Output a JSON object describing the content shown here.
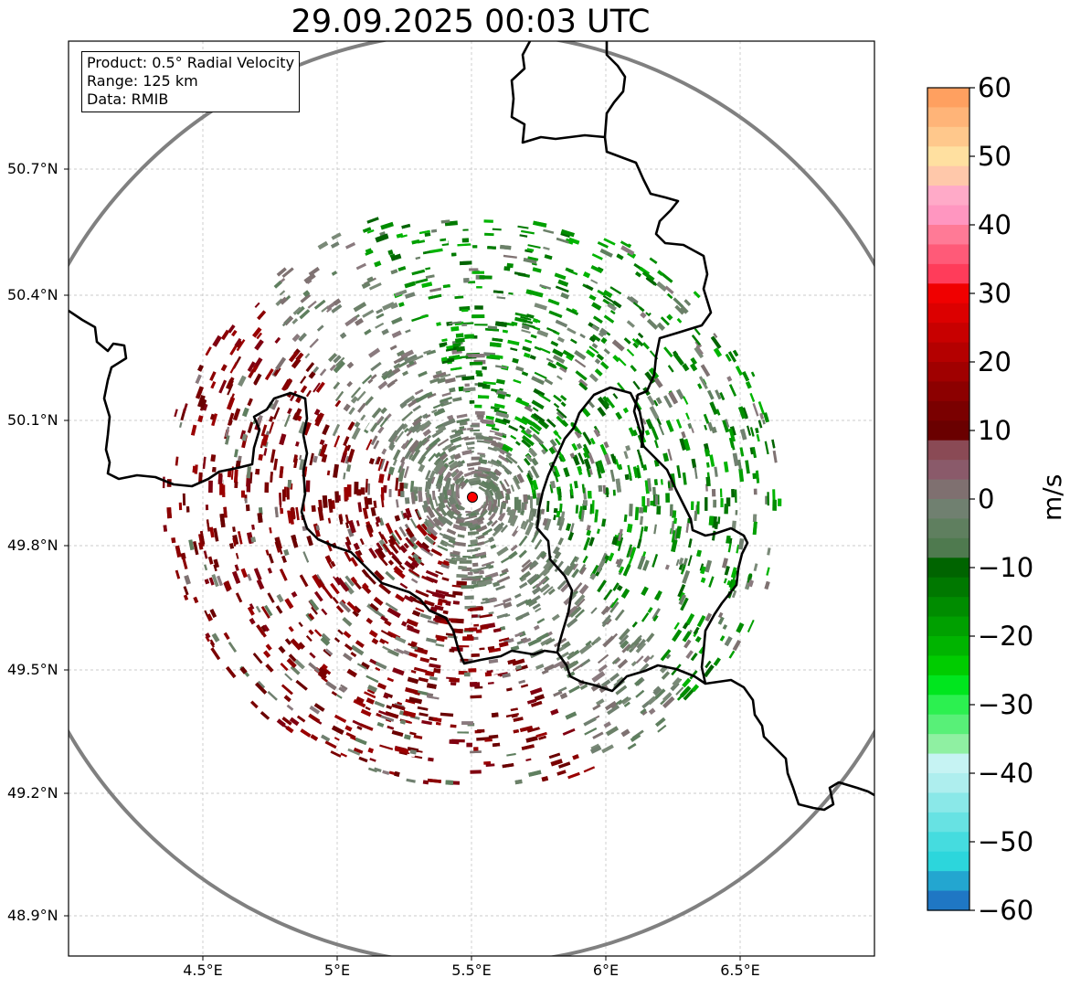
{
  "title": "29.09.2025 00:03 UTC",
  "info": {
    "product": "Product: 0.5° Radial Velocity",
    "range": "Range: 125 km",
    "source": "Data: RMIB"
  },
  "axes": {
    "y_ticks": [
      "50.7°N",
      "50.4°N",
      "50.1°N",
      "49.8°N",
      "49.5°N",
      "49.2°N",
      "48.9°N"
    ],
    "x_ticks": [
      "4.5°E",
      "5°E",
      "5.5°E",
      "6°E",
      "6.5°E"
    ]
  },
  "colorbar": {
    "label": "m/s",
    "ticks": [
      "60",
      "50",
      "40",
      "30",
      "20",
      "10",
      "0",
      "−10",
      "−20",
      "−30",
      "−40",
      "−50",
      "−60"
    ],
    "min": -60,
    "max": 60,
    "colors": [
      "#1f77c4",
      "#23a6d0",
      "#2cd6dc",
      "#45dcdf",
      "#67e2e3",
      "#8ae8e8",
      "#aeeeee",
      "#c6f3f3",
      "#8ff0a2",
      "#58f078",
      "#2cf050",
      "#00e61e",
      "#00cc00",
      "#00b400",
      "#00a000",
      "#008c00",
      "#007800",
      "#006400",
      "#4f7a4f",
      "#5f7f5f",
      "#708070",
      "#7f7070",
      "#8a5a6a",
      "#8a4a55",
      "#6a0000",
      "#7a0000",
      "#8c0000",
      "#a00000",
      "#b40000",
      "#c80000",
      "#dc0000",
      "#f00000",
      "#ff3c5a",
      "#ff5a78",
      "#ff7a96",
      "#ff96c0",
      "#ffaac8",
      "#ffc8aa",
      "#ffe0a0",
      "#ffc88c",
      "#ffb478",
      "#ffa060"
    ],
    "accent_low": "#1f77b4",
    "accent_high": "#ff9a55"
  },
  "radar": {
    "site_color": "#ff0000",
    "ring_color": "#808080",
    "approaching_color": "#008000",
    "receding_color": "#8b0000",
    "zero_color": "#6b8068",
    "site_icon": "radar-site-marker"
  }
}
